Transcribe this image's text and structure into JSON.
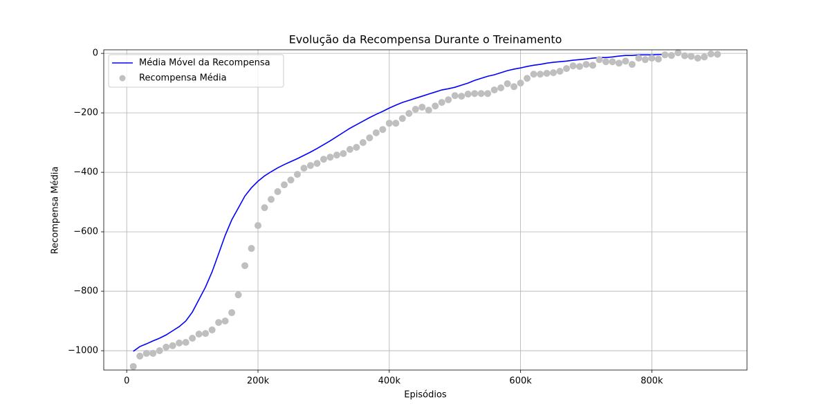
{
  "chart_data": {
    "type": "line",
    "title": "Evolução da Recompensa Durante o Treinamento",
    "xlabel": "Episódios",
    "ylabel": "Recompensa Média",
    "xlim": [
      -35000,
      945000
    ],
    "ylim": [
      -1065,
      12
    ],
    "xticks": [
      0,
      {
        "value": 200000,
        "label": "200k"
      },
      {
        "value": 400000,
        "label": "400k"
      },
      {
        "value": 600000,
        "label": "600k"
      },
      {
        "value": 800000,
        "label": "800k"
      }
    ],
    "yticks": [
      {
        "value": -1000,
        "label": "−1000"
      },
      {
        "value": -800,
        "label": "−800"
      },
      {
        "value": -600,
        "label": "−600"
      },
      {
        "value": -400,
        "label": "−400"
      },
      {
        "value": -200,
        "label": "−200"
      },
      0
    ],
    "grid": true,
    "legend": "upper-left",
    "series": [
      {
        "name": "Média Móvel da Recompensa",
        "type": "line",
        "color": "#0000ff",
        "x": [
          10000,
          20000,
          30000,
          40000,
          50000,
          60000,
          70000,
          80000,
          90000,
          100000,
          110000,
          120000,
          130000,
          140000,
          150000,
          160000,
          170000,
          180000,
          190000,
          200000,
          210000,
          220000,
          230000,
          240000,
          250000,
          260000,
          270000,
          280000,
          290000,
          300000,
          310000,
          320000,
          330000,
          340000,
          350000,
          360000,
          370000,
          380000,
          390000,
          400000,
          410000,
          420000,
          430000,
          440000,
          450000,
          460000,
          470000,
          480000,
          490000,
          500000,
          510000,
          520000,
          530000,
          540000,
          550000,
          560000,
          570000,
          580000,
          590000,
          600000,
          610000,
          620000,
          630000,
          640000,
          650000,
          660000,
          670000,
          680000,
          690000,
          700000,
          710000,
          720000,
          730000,
          740000,
          750000,
          760000,
          770000,
          780000,
          790000,
          800000,
          810000,
          820000
        ],
        "values": [
          -1002,
          -986,
          -977,
          -967,
          -958,
          -947,
          -933,
          -919,
          -900,
          -870,
          -828,
          -786,
          -735,
          -674,
          -612,
          -560,
          -520,
          -480,
          -452,
          -430,
          -412,
          -398,
          -385,
          -374,
          -364,
          -354,
          -343,
          -332,
          -320,
          -307,
          -294,
          -280,
          -266,
          -252,
          -240,
          -228,
          -216,
          -205,
          -195,
          -184,
          -174,
          -165,
          -158,
          -151,
          -144,
          -137,
          -130,
          -123,
          -119,
          -114,
          -107,
          -100,
          -91,
          -84,
          -77,
          -72,
          -65,
          -58,
          -53,
          -49,
          -44,
          -40,
          -37,
          -33,
          -30,
          -28,
          -26,
          -23,
          -21,
          -19,
          -16,
          -14,
          -14,
          -12,
          -9,
          -7,
          -7,
          -5,
          -5,
          -5,
          -4,
          -4
        ]
      },
      {
        "name": "Recompensa Média",
        "type": "scatter",
        "color": "#bfbfbf",
        "x": [
          10000,
          20000,
          30000,
          40000,
          50000,
          60000,
          70000,
          80000,
          90000,
          100000,
          110000,
          120000,
          130000,
          140000,
          150000,
          160000,
          170000,
          180000,
          190000,
          200000,
          210000,
          220000,
          230000,
          240000,
          250000,
          260000,
          270000,
          280000,
          290000,
          300000,
          310000,
          320000,
          330000,
          340000,
          350000,
          360000,
          370000,
          380000,
          390000,
          400000,
          410000,
          420000,
          430000,
          440000,
          450000,
          460000,
          470000,
          480000,
          490000,
          500000,
          510000,
          520000,
          530000,
          540000,
          550000,
          560000,
          570000,
          580000,
          590000,
          600000,
          610000,
          620000,
          630000,
          640000,
          650000,
          660000,
          670000,
          680000,
          690000,
          700000,
          710000,
          720000,
          730000,
          740000,
          750000,
          760000,
          770000,
          780000,
          790000,
          800000,
          810000,
          820000,
          830000,
          840000,
          850000,
          860000,
          870000,
          880000,
          890000,
          900000
        ],
        "values": [
          -1053,
          -1018,
          -1009,
          -1009,
          -1000,
          -988,
          -983,
          -974,
          -972,
          -958,
          -944,
          -942,
          -930,
          -905,
          -900,
          -872,
          -812,
          -714,
          -656,
          -579,
          -519,
          -491,
          -465,
          -442,
          -426,
          -407,
          -386,
          -377,
          -370,
          -356,
          -349,
          -342,
          -337,
          -323,
          -316,
          -300,
          -284,
          -267,
          -256,
          -235,
          -235,
          -219,
          -202,
          -188,
          -181,
          -191,
          -177,
          -165,
          -156,
          -142,
          -144,
          -137,
          -135,
          -135,
          -135,
          -123,
          -116,
          -102,
          -112,
          -100,
          -84,
          -70,
          -70,
          -67,
          -65,
          -60,
          -51,
          -42,
          -44,
          -37,
          -40,
          -21,
          -28,
          -28,
          -33,
          -26,
          -37,
          -16,
          -21,
          -16,
          -19,
          -5,
          -7,
          2,
          -8,
          -10,
          -16,
          -12,
          -2,
          -3
        ]
      }
    ]
  }
}
